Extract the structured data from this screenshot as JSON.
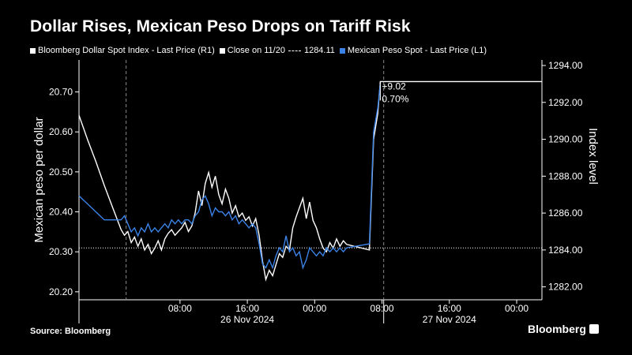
{
  "chart_data": {
    "type": "line",
    "title": "Dollar Rises, Mexican Peso Drops on Tariff Risk",
    "legend": [
      {
        "label": "Bloomberg Dollar Spot Index - Last Price (R1)",
        "color": "#ffffff"
      },
      {
        "label": "Close on 11/20",
        "value": "1284.11",
        "color": "#ffffff"
      },
      {
        "label": "Mexican Peso Spot - Last Price (L1)",
        "color": "#3b82e6"
      }
    ],
    "ylabel_left": "Mexican peso per dollar",
    "ylabel_right": "Index level",
    "yticks_left": [
      "20.20",
      "20.30",
      "20.40",
      "20.50",
      "20.60",
      "20.70"
    ],
    "ylim_left": [
      20.18,
      20.78
    ],
    "yticks_right": [
      "1282.00",
      "1284.00",
      "1286.00",
      "1288.00",
      "1290.00",
      "1292.00",
      "1294.00"
    ],
    "ylim_right": [
      1281.3,
      1294.3
    ],
    "xticks": [
      "08:00",
      "16:00",
      "00:00",
      "08:00",
      "16:00",
      "00:00"
    ],
    "xdate_labels": [
      "26 Nov 2024",
      "27 Nov 2024"
    ],
    "x_units": "hours since 25 Nov 2024 20:00",
    "xlim": [
      0,
      55
    ],
    "close_reference": 1284.11,
    "annotation": {
      "change": "+9.02",
      "percent": "0.70%",
      "last_value": 1293.13
    },
    "series": [
      {
        "name": "Bloomberg Dollar Spot Index - Last Price (R1)",
        "axis": "right",
        "color": "#ffffff",
        "points": [
          [
            0,
            1291.3
          ],
          [
            1,
            1290
          ],
          [
            2,
            1288.8
          ],
          [
            3,
            1287.5
          ],
          [
            4,
            1286.3
          ],
          [
            5,
            1285.1
          ],
          [
            5.4,
            1284.8
          ],
          [
            5.8,
            1285.0
          ],
          [
            6.2,
            1284.4
          ],
          [
            6.6,
            1284.7
          ],
          [
            7.0,
            1284.2
          ],
          [
            7.4,
            1284.6
          ],
          [
            7.8,
            1284.0
          ],
          [
            8.2,
            1284.3
          ],
          [
            8.6,
            1283.8
          ],
          [
            9.0,
            1284.1
          ],
          [
            9.4,
            1284.5
          ],
          [
            9.8,
            1284.0
          ],
          [
            10.2,
            1284.6
          ],
          [
            10.6,
            1284.9
          ],
          [
            11.0,
            1285.1
          ],
          [
            11.4,
            1284.8
          ],
          [
            11.8,
            1285.0
          ],
          [
            12.2,
            1285.2
          ],
          [
            12.6,
            1285.5
          ],
          [
            13.0,
            1285.0
          ],
          [
            13.4,
            1285.3
          ],
          [
            13.8,
            1286.0
          ],
          [
            14.2,
            1287.2
          ],
          [
            14.6,
            1286.4
          ],
          [
            15.0,
            1287.6
          ],
          [
            15.4,
            1288.2
          ],
          [
            15.8,
            1287.4
          ],
          [
            16.2,
            1288.0
          ],
          [
            16.6,
            1287.0
          ],
          [
            17.0,
            1286.5
          ],
          [
            17.4,
            1287.3
          ],
          [
            17.8,
            1286.8
          ],
          [
            18.2,
            1286.0
          ],
          [
            18.6,
            1286.4
          ],
          [
            19.0,
            1285.8
          ],
          [
            19.4,
            1286.0
          ],
          [
            19.8,
            1285.6
          ],
          [
            20.2,
            1285.8
          ],
          [
            20.6,
            1285.3
          ],
          [
            21.0,
            1285.7
          ],
          [
            21.4,
            1284.8
          ],
          [
            21.8,
            1283.4
          ],
          [
            22.2,
            1282.4
          ],
          [
            22.6,
            1282.9
          ],
          [
            23.0,
            1282.6
          ],
          [
            23.4,
            1283.2
          ],
          [
            23.8,
            1283.8
          ],
          [
            24.2,
            1283.6
          ],
          [
            24.6,
            1284.2
          ],
          [
            25.0,
            1284.0
          ],
          [
            25.4,
            1285.2
          ],
          [
            25.8,
            1285.8
          ],
          [
            26.2,
            1286.3
          ],
          [
            26.6,
            1286.8
          ],
          [
            27.0,
            1285.7
          ],
          [
            27.4,
            1286.6
          ],
          [
            27.8,
            1285.6
          ],
          [
            28.2,
            1285.2
          ],
          [
            28.6,
            1284.6
          ],
          [
            29.0,
            1284.1
          ],
          [
            29.4,
            1283.9
          ],
          [
            29.8,
            1284.4
          ],
          [
            30.2,
            1284.1
          ],
          [
            30.6,
            1284.6
          ],
          [
            31.0,
            1284.2
          ],
          [
            31.4,
            1284.5
          ],
          [
            31.8,
            1284.3
          ],
          [
            34.5,
            1284.0
          ],
          [
            35.0,
            1290.0
          ],
          [
            35.5,
            1291.4
          ],
          [
            35.8,
            1293.13
          ],
          [
            55,
            1293.13
          ]
        ]
      },
      {
        "name": "Mexican Peso Spot - Last Price (L1)",
        "axis": "left",
        "color": "#3b82e6",
        "points": [
          [
            0,
            20.44
          ],
          [
            1,
            20.42
          ],
          [
            2,
            20.4
          ],
          [
            3,
            20.38
          ],
          [
            4,
            20.38
          ],
          [
            5,
            20.38
          ],
          [
            5.4,
            20.39
          ],
          [
            5.8,
            20.37
          ],
          [
            6.2,
            20.35
          ],
          [
            6.6,
            20.36
          ],
          [
            7.0,
            20.34
          ],
          [
            7.4,
            20.36
          ],
          [
            7.8,
            20.35
          ],
          [
            8.2,
            20.37
          ],
          [
            8.6,
            20.35
          ],
          [
            9.0,
            20.36
          ],
          [
            9.4,
            20.35
          ],
          [
            9.8,
            20.36
          ],
          [
            10.2,
            20.37
          ],
          [
            10.6,
            20.36
          ],
          [
            11.0,
            20.38
          ],
          [
            11.4,
            20.37
          ],
          [
            11.8,
            20.38
          ],
          [
            12.2,
            20.37
          ],
          [
            12.6,
            20.38
          ],
          [
            13.0,
            20.38
          ],
          [
            13.4,
            20.37
          ],
          [
            13.8,
            20.39
          ],
          [
            14.2,
            20.4
          ],
          [
            14.6,
            20.43
          ],
          [
            15.0,
            20.44
          ],
          [
            15.4,
            20.42
          ],
          [
            15.8,
            20.39
          ],
          [
            16.2,
            20.41
          ],
          [
            16.6,
            20.4
          ],
          [
            17.0,
            20.4
          ],
          [
            17.4,
            20.39
          ],
          [
            17.8,
            20.4
          ],
          [
            18.2,
            20.38
          ],
          [
            18.6,
            20.39
          ],
          [
            19.0,
            20.37
          ],
          [
            19.4,
            20.38
          ],
          [
            19.8,
            20.37
          ],
          [
            20.2,
            20.36
          ],
          [
            20.6,
            20.37
          ],
          [
            21.0,
            20.36
          ],
          [
            21.4,
            20.32
          ],
          [
            21.8,
            20.27
          ],
          [
            22.2,
            20.26
          ],
          [
            22.6,
            20.28
          ],
          [
            23.0,
            20.26
          ],
          [
            23.4,
            20.29
          ],
          [
            23.8,
            20.31
          ],
          [
            24.2,
            20.3
          ],
          [
            24.6,
            20.34
          ],
          [
            25.0,
            20.3
          ],
          [
            25.4,
            20.31
          ],
          [
            25.8,
            20.29
          ],
          [
            26.2,
            20.3
          ],
          [
            26.6,
            20.26
          ],
          [
            27.0,
            20.28
          ],
          [
            27.4,
            20.31
          ],
          [
            27.8,
            20.3
          ],
          [
            28.2,
            20.29
          ],
          [
            28.6,
            20.3
          ],
          [
            29.0,
            20.29
          ],
          [
            29.4,
            20.31
          ],
          [
            29.8,
            20.3
          ],
          [
            30.2,
            20.31
          ],
          [
            30.6,
            20.3
          ],
          [
            31.0,
            20.31
          ],
          [
            31.4,
            20.3
          ],
          [
            31.8,
            20.31
          ],
          [
            34.5,
            20.32
          ],
          [
            35.0,
            20.6
          ],
          [
            35.5,
            20.66
          ],
          [
            35.8,
            20.72
          ]
        ]
      }
    ],
    "grid": false
  },
  "footer": {
    "source": "Source: Bloomberg",
    "brand": "Bloomberg"
  }
}
